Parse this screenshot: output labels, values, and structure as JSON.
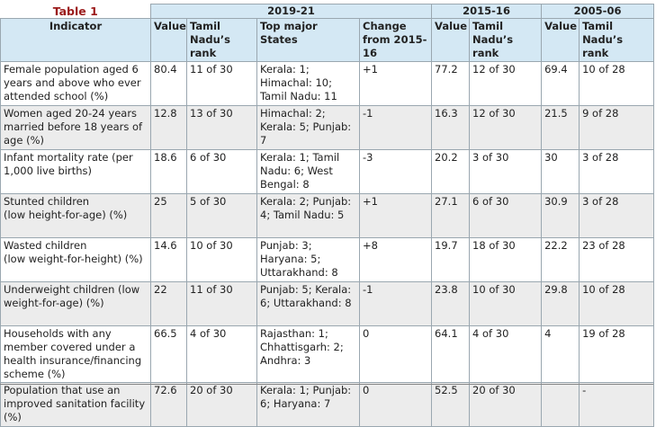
{
  "table": {
    "caption": "Table 1",
    "periods": [
      "2019-21",
      "2015-16",
      "2005-06"
    ],
    "columns": [
      "Indicator",
      "Value",
      "Tamil Nadu’s rank",
      "Top major States",
      "Change from 2015-16",
      "Value",
      "Tamil Nadu’s rank",
      "Value",
      "Tamil Nadu’s rank"
    ],
    "rows": [
      [
        "Female population aged 6 years and above who ever attended school (%)",
        "80.4",
        "11 of 30",
        "Kerala: 1;\nHimachal: 10;\nTamil Nadu: 11",
        "+1",
        "77.2",
        "12 of 30",
        "69.4",
        "10 of 28"
      ],
      [
        "Women aged 20-24 years married before 18 years of age (%)",
        "12.8",
        "13 of 30",
        "Himachal: 2;\nKerala: 5; Punjab: 7",
        "-1",
        "16.3",
        "12 of 30",
        "21.5",
        "9 of 28"
      ],
      [
        "Infant mortality rate (per 1,000 live births)",
        "18.6",
        "6 of 30",
        "Kerala: 1; Tamil Nadu: 6; West Bengal: 8",
        "-3",
        "20.2",
        "3 of 30",
        "30",
        "3 of 28"
      ],
      [
        "Stunted children\n(low height-for-age) (%)",
        "25",
        "5 of 30",
        "Kerala: 2; Punjab: 4; Tamil Nadu: 5",
        "+1",
        "27.1",
        "6 of 30",
        "30.9",
        "3 of 28"
      ],
      [
        "Wasted children\n(low weight-for-height) (%)",
        "14.6",
        "10 of 30",
        "Punjab: 3;\nHaryana: 5;\nUttarakhand: 8",
        "+8",
        "19.7",
        "18 of 30",
        "22.2",
        "23 of 28"
      ],
      [
        "Underweight children (low weight-for-age) (%)",
        "22",
        "11 of 30",
        "Punjab: 5; Kerala: 6; Uttarakhand: 8",
        "-1",
        "23.8",
        "10 of 30",
        "29.8",
        "10 of 28"
      ],
      [
        "Households with any member covered under a health insurance/financing scheme (%)",
        "66.5",
        "4 of 30",
        "Rajasthan: 1;\nChhattisgarh: 2;\nAndhra: 3",
        "0",
        "64.1",
        "4 of 30",
        "4",
        "19 of 28"
      ],
      [
        "Population that use an improved sanitation facility (%)",
        "72.6",
        "20 of 30",
        "Kerala: 1; Punjab: 6; Haryana: 7",
        "0",
        "52.5",
        "20 of 30",
        null,
        "-"
      ]
    ]
  }
}
